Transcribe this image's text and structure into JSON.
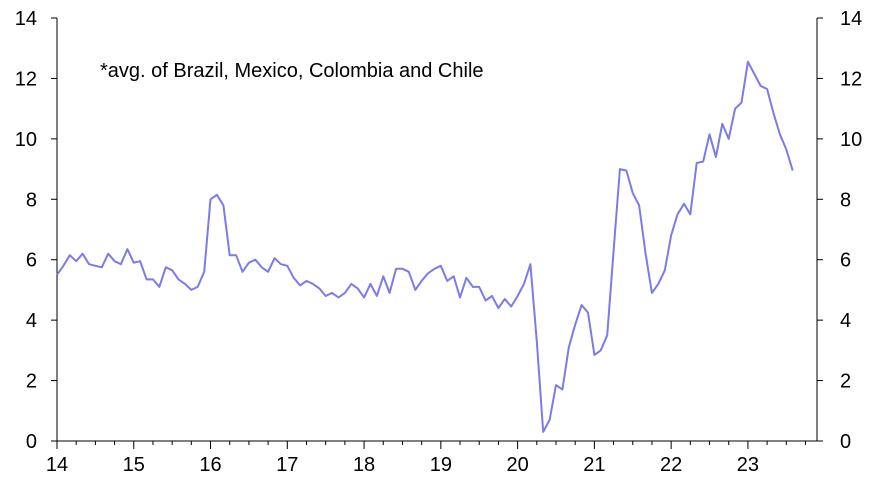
{
  "chart_data": {
    "type": "line",
    "annotation": "*avg. of Brazil, Mexico, Colombia and Chile",
    "x_tick_labels": [
      "14",
      "15",
      "16",
      "17",
      "18",
      "19",
      "20",
      "21",
      "22",
      "23"
    ],
    "y_left_tick_labels": [
      "0",
      "2",
      "4",
      "6",
      "8",
      "10",
      "12",
      "14"
    ],
    "y_right_tick_labels": [
      "0",
      "2",
      "4",
      "6",
      "8",
      "10",
      "12",
      "14"
    ],
    "xlim": [
      2014.0,
      2023.9
    ],
    "ylim": [
      0,
      14
    ],
    "grid": false,
    "series": [
      {
        "color": "#7b7bea",
        "x": [
          2014.0,
          2014.083,
          2014.167,
          2014.25,
          2014.333,
          2014.417,
          2014.5,
          2014.583,
          2014.667,
          2014.75,
          2014.833,
          2014.917,
          2015.0,
          2015.083,
          2015.167,
          2015.25,
          2015.333,
          2015.417,
          2015.5,
          2015.583,
          2015.667,
          2015.75,
          2015.833,
          2015.917,
          2016.0,
          2016.083,
          2016.167,
          2016.25,
          2016.333,
          2016.417,
          2016.5,
          2016.583,
          2016.667,
          2016.75,
          2016.833,
          2016.917,
          2017.0,
          2017.083,
          2017.167,
          2017.25,
          2017.333,
          2017.417,
          2017.5,
          2017.583,
          2017.667,
          2017.75,
          2017.833,
          2017.917,
          2018.0,
          2018.083,
          2018.167,
          2018.25,
          2018.333,
          2018.417,
          2018.5,
          2018.583,
          2018.667,
          2018.75,
          2018.833,
          2018.917,
          2019.0,
          2019.083,
          2019.167,
          2019.25,
          2019.333,
          2019.417,
          2019.5,
          2019.583,
          2019.667,
          2019.75,
          2019.833,
          2019.917,
          2020.0,
          2020.083,
          2020.167,
          2020.25,
          2020.333,
          2020.417,
          2020.5,
          2020.583,
          2020.667,
          2020.75,
          2020.833,
          2020.917,
          2021.0,
          2021.083,
          2021.167,
          2021.25,
          2021.333,
          2021.417,
          2021.5,
          2021.583,
          2021.667,
          2021.75,
          2021.833,
          2021.917,
          2022.0,
          2022.083,
          2022.167,
          2022.25,
          2022.333,
          2022.417,
          2022.5,
          2022.583,
          2022.667,
          2022.75,
          2022.833,
          2022.917,
          2023.0,
          2023.083,
          2023.167,
          2023.25,
          2023.333,
          2023.417,
          2023.5,
          2023.583
        ],
        "values": [
          5.5,
          5.8,
          6.15,
          5.95,
          6.2,
          5.85,
          5.8,
          5.75,
          6.2,
          5.95,
          5.85,
          6.35,
          5.9,
          5.95,
          5.35,
          5.35,
          5.1,
          5.75,
          5.65,
          5.35,
          5.2,
          5.0,
          5.1,
          5.6,
          8.0,
          8.15,
          7.8,
          6.15,
          6.15,
          5.6,
          5.9,
          6.0,
          5.75,
          5.6,
          6.05,
          5.85,
          5.8,
          5.4,
          5.15,
          5.3,
          5.2,
          5.05,
          4.8,
          4.9,
          4.75,
          4.9,
          5.2,
          5.05,
          4.75,
          5.2,
          4.8,
          5.45,
          4.9,
          5.7,
          5.7,
          5.6,
          5.0,
          5.3,
          5.55,
          5.7,
          5.8,
          5.3,
          5.45,
          4.75,
          5.4,
          5.1,
          5.1,
          4.65,
          4.8,
          4.4,
          4.7,
          4.45,
          4.8,
          5.2,
          5.85,
          3.3,
          0.3,
          0.7,
          1.85,
          1.7,
          3.1,
          3.85,
          4.5,
          4.25,
          2.85,
          3.0,
          3.5,
          6.3,
          9.0,
          8.95,
          8.2,
          7.8,
          6.2,
          4.9,
          5.2,
          5.65,
          6.8,
          7.5,
          7.85,
          7.5,
          9.2,
          9.25,
          10.15,
          9.4,
          10.5,
          10.0,
          11.0,
          11.2,
          12.55,
          12.15,
          11.75,
          11.65,
          10.85,
          10.15,
          9.65,
          8.95
        ]
      }
    ]
  }
}
